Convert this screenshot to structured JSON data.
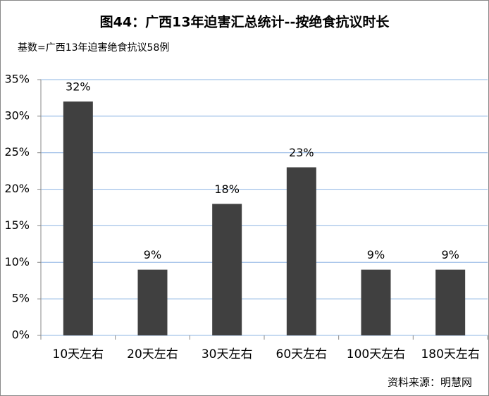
{
  "chart_data": {
    "type": "bar",
    "title": "图44：广西13年迫害汇总统计--按绝食抗议时长",
    "subtitle": "基数=广西13年迫害绝食抗议58例",
    "source": "资料来源：明慧网",
    "categories": [
      "10天左右",
      "20天左右",
      "30天左右",
      "60天左右",
      "100天左右",
      "180天左右"
    ],
    "values": [
      32,
      9,
      18,
      23,
      9,
      9
    ],
    "value_labels": [
      "32%",
      "9%",
      "18%",
      "23%",
      "9%",
      "9%"
    ],
    "color": "#404040",
    "ylim": [
      0,
      35
    ],
    "yticks": [
      {
        "value": 0,
        "label": "0%"
      },
      {
        "value": 5,
        "label": "5%"
      },
      {
        "value": 10,
        "label": "10%"
      },
      {
        "value": 15,
        "label": "15%"
      },
      {
        "value": 20,
        "label": "20%"
      },
      {
        "value": 25,
        "label": "25%"
      },
      {
        "value": 30,
        "label": "30%"
      },
      {
        "value": 35,
        "label": "35%"
      }
    ],
    "grid": true
  }
}
